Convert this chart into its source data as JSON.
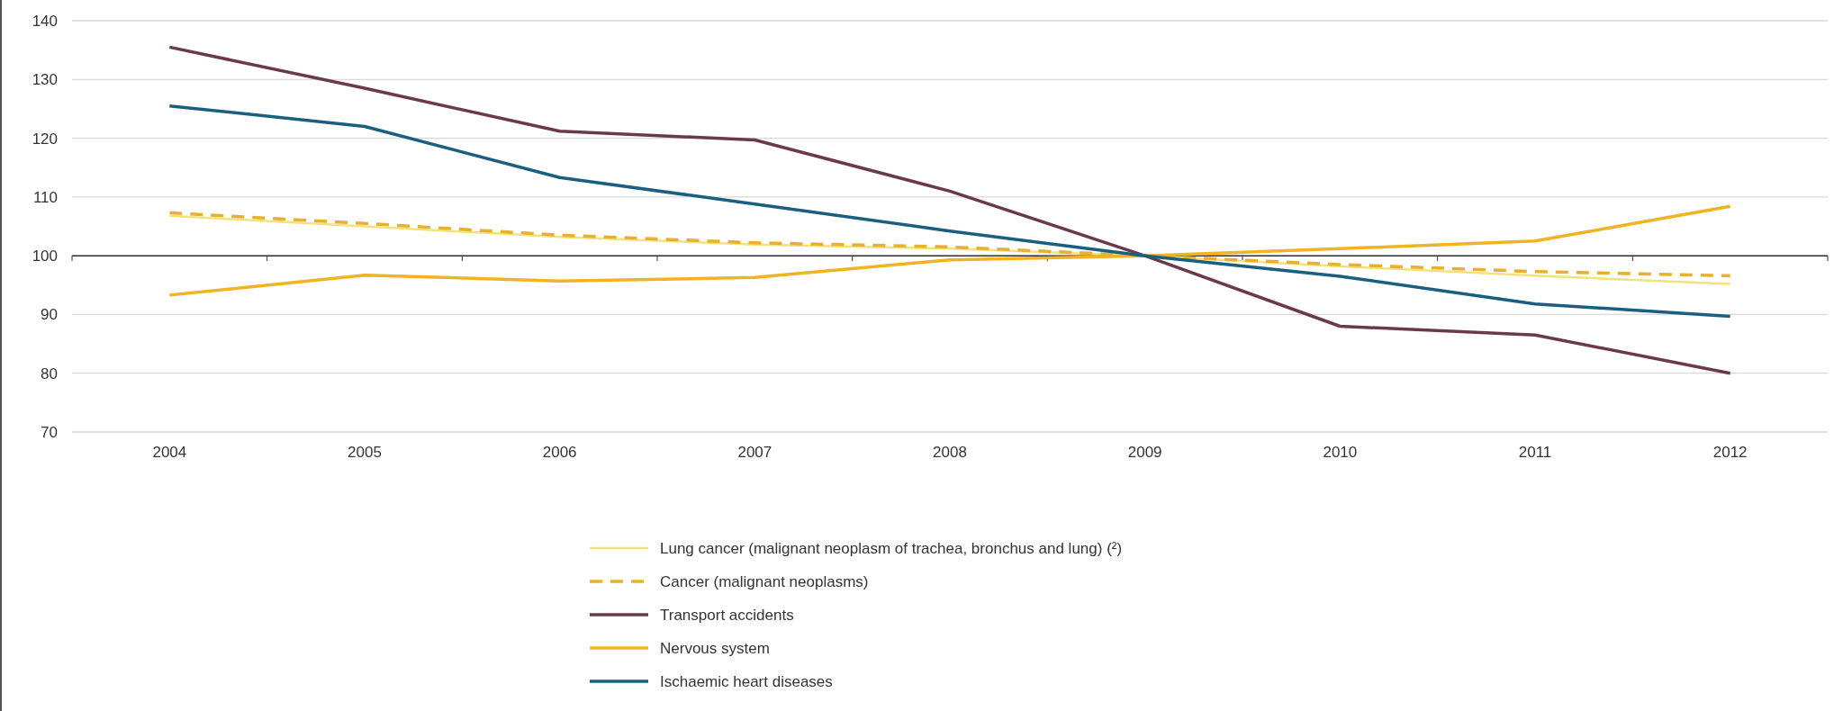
{
  "chart_data": {
    "type": "line",
    "categories": [
      "2004",
      "2005",
      "2006",
      "2007",
      "2008",
      "2009",
      "2010",
      "2011",
      "2012"
    ],
    "ylim": [
      70,
      140
    ],
    "ref_lines": [
      {
        "axis": "y",
        "value": 100,
        "color": "#333333"
      }
    ],
    "yticks": [
      70,
      80,
      90,
      100,
      110,
      120,
      130,
      140
    ],
    "grid": "y",
    "legend": "bottom",
    "marker": "none",
    "series": [
      {
        "name": "Lung cancer (malignant neoplasm of trachea, bronchus and lung) (²)",
        "color": "#f2e27a",
        "values": [
          106.8,
          105,
          103.2,
          101.9,
          101.2,
          100,
          98.2,
          96.6,
          95.2
        ]
      },
      {
        "name": "Cancer (malignant neoplasms)",
        "color": "#e8b030",
        "line_style": "dashed",
        "values": [
          107.3,
          105.5,
          103.5,
          102.2,
          101.5,
          100,
          98.5,
          97.3,
          96.6
        ]
      },
      {
        "name": "Transport accidents",
        "color": "#6b3a4a",
        "values": [
          135.5,
          128.5,
          121.2,
          119.7,
          111,
          100,
          88,
          86.5,
          80
        ]
      },
      {
        "name": "Nervous system",
        "color": "#f0b323",
        "values": [
          93.3,
          96.7,
          95.7,
          96.3,
          99.3,
          100,
          101.2,
          102.5,
          108.4
        ]
      },
      {
        "name": "Ischaemic heart diseases",
        "color": "#1a5f80",
        "values": [
          125.5,
          122,
          113.3,
          108.8,
          104.2,
          100,
          96.5,
          91.8,
          89.7
        ]
      }
    ]
  }
}
